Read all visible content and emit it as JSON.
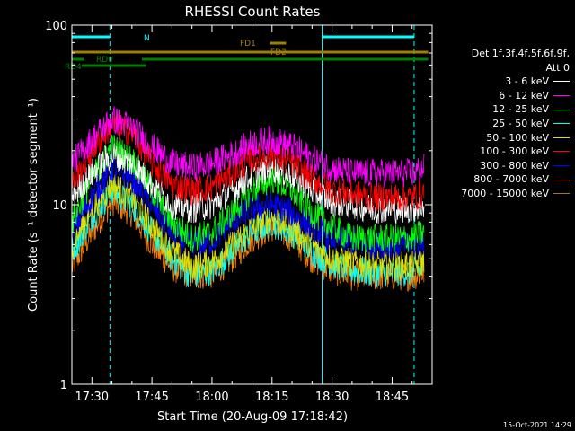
{
  "chart_data": {
    "type": "line",
    "title": "RHESSI Count Rates",
    "xlabel": "Start Time (20-Aug-09 17:18:42)",
    "ylabel": "Count Rate (s⁻¹ detector segment⁻¹)",
    "yscale": "log",
    "ylim": [
      1,
      100
    ],
    "y_ticks": [
      "1",
      "10",
      "100"
    ],
    "xlim_minutes": [
      -5,
      85
    ],
    "x_ticks": [
      "17:30",
      "17:45",
      "18:00",
      "18:15",
      "18:30",
      "18:45"
    ],
    "x_tick_minutes": [
      0,
      15,
      30,
      45,
      60,
      75
    ],
    "grid": false,
    "legend_header": [
      "Det 1f,3f,4f,5f,6f,9f,",
      "Att 0"
    ],
    "legend_position": "right, outside plot",
    "series": [
      {
        "name": "3 - 6 keV",
        "color": "#ffffff",
        "x": [
          -5,
          0,
          5,
          10,
          15,
          20,
          25,
          30,
          35,
          40,
          45,
          50,
          55,
          60,
          65,
          70,
          75,
          80,
          83
        ],
        "values": [
          11,
          15,
          19,
          17,
          13,
          10,
          9.5,
          10,
          12,
          14.5,
          16,
          14.5,
          12,
          10.5,
          10,
          9.5,
          9.5,
          9.5,
          10
        ]
      },
      {
        "name": "6 - 12 keV",
        "color": "#ff00ff",
        "x": [
          -5,
          0,
          5,
          10,
          15,
          20,
          25,
          30,
          35,
          40,
          45,
          50,
          55,
          60,
          65,
          70,
          75,
          80,
          83
        ],
        "values": [
          17,
          23,
          30,
          27,
          21,
          17,
          16,
          17,
          19,
          22,
          23,
          21,
          18,
          16,
          15,
          15,
          15,
          15,
          16
        ]
      },
      {
        "name": "12 - 25 keV",
        "color": "#00ff00",
        "x": [
          -5,
          0,
          5,
          10,
          15,
          20,
          25,
          30,
          35,
          40,
          45,
          50,
          55,
          60,
          65,
          70,
          75,
          80,
          83
        ],
        "values": [
          8,
          14,
          21,
          18,
          12,
          8,
          6.5,
          7,
          9,
          12,
          14,
          12,
          9,
          7.5,
          6.5,
          6.5,
          6.5,
          6.5,
          7
        ]
      },
      {
        "name": "25 - 50 keV",
        "color": "#00ffff",
        "x": [
          -5,
          0,
          5,
          10,
          15,
          20,
          25,
          30,
          35,
          40,
          45,
          50,
          55,
          60,
          65,
          70,
          75,
          80,
          83
        ],
        "values": [
          5.5,
          8.5,
          12,
          10,
          7,
          5,
          4,
          4.3,
          5.5,
          7,
          8,
          7,
          5.5,
          4.7,
          4.3,
          4.2,
          4.2,
          4.2,
          4.5
        ]
      },
      {
        "name": "50 - 100 keV",
        "color": "#e0e000",
        "x": [
          -5,
          0,
          5,
          10,
          15,
          20,
          25,
          30,
          35,
          40,
          45,
          50,
          55,
          60,
          65,
          70,
          75,
          80,
          83
        ],
        "values": [
          6,
          9.5,
          13,
          11,
          7.5,
          5.5,
          4.5,
          4.8,
          6,
          7.5,
          8.5,
          7.5,
          6,
          5,
          4.8,
          4.6,
          4.6,
          4.6,
          4.8
        ]
      },
      {
        "name": "100 - 300 keV",
        "color": "#ff0000",
        "x": [
          -5,
          0,
          5,
          10,
          15,
          20,
          25,
          30,
          35,
          40,
          45,
          50,
          55,
          60,
          65,
          70,
          75,
          80,
          83
        ],
        "values": [
          13,
          20,
          28,
          25,
          17,
          13,
          12,
          12.5,
          15,
          18,
          19,
          17,
          14,
          12,
          11.5,
          11,
          11,
          11,
          11.5
        ]
      },
      {
        "name": "300 - 800 keV",
        "color": "#0000ff",
        "x": [
          -5,
          0,
          5,
          10,
          15,
          20,
          25,
          30,
          35,
          40,
          45,
          50,
          55,
          60,
          65,
          70,
          75,
          80,
          83
        ],
        "values": [
          7,
          11,
          16,
          14,
          10,
          7,
          6,
          6.3,
          8,
          9.5,
          10,
          9,
          7.5,
          6.5,
          6.2,
          6,
          6,
          6,
          6.3
        ]
      },
      {
        "name": "800 - 7000 keV",
        "color": "#ff8000",
        "x": [
          -5,
          0,
          5,
          10,
          15,
          20,
          25,
          30,
          35,
          40,
          45,
          50,
          55,
          60,
          65,
          70,
          75,
          80,
          83
        ],
        "values": [
          4.5,
          7,
          10.5,
          9,
          6,
          4.5,
          4,
          4.1,
          5,
          6.5,
          7.5,
          6.5,
          5,
          4.3,
          4,
          4,
          4,
          4,
          4.2
        ]
      },
      {
        "name": "7000 - 15000 keV",
        "color": "#a08000",
        "x": [],
        "values": []
      }
    ],
    "annotations": {
      "bars": [
        {
          "label": "N",
          "color": "#00ffff",
          "segments": [
            [
              -5,
              4.5
            ],
            [
              57.5,
              80.5
            ]
          ]
        },
        {
          "label": "FD1",
          "color": "#a08000",
          "segments": [
            [
              44.5,
              48.5
            ]
          ]
        },
        {
          "label": "FD2",
          "color": "#a08000",
          "segments": [
            [
              -5,
              84
            ]
          ]
        },
        {
          "label": "RD0",
          "color": "#008000",
          "segments": [
            [
              -5,
              -2
            ],
            [
              12.5,
              84
            ]
          ]
        },
        {
          "label": "RD4",
          "color": "#008000",
          "segments": [
            [
              -2.5,
              13.5
            ]
          ]
        }
      ],
      "vlines_solid_minutes": [
        -5,
        57.5
      ],
      "vlines_dashed_minutes": [
        4.5,
        80.5
      ]
    }
  },
  "footer": {
    "timestamp": "15-Oct-2021 14:29"
  }
}
